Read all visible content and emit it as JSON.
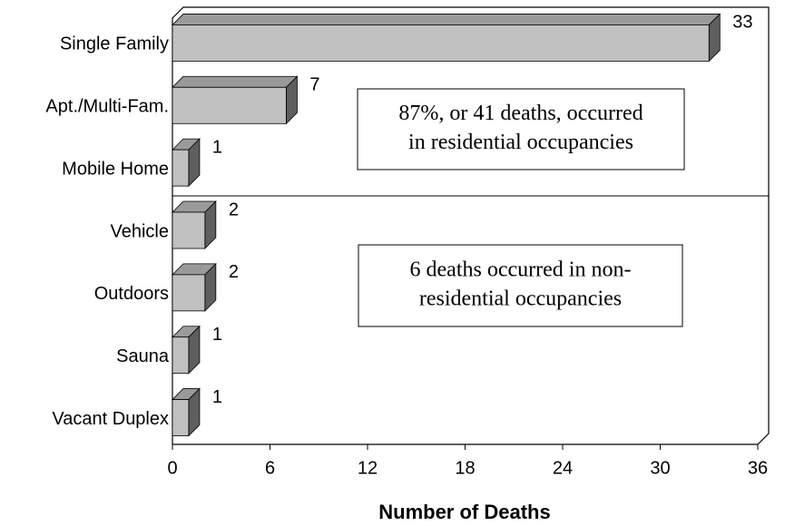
{
  "chart_data": {
    "type": "bar3d_horizontal",
    "categories": [
      "Single Family",
      "Apt./Multi-Fam.",
      "Mobile Home",
      "Vehicle",
      "Outdoors",
      "Sauna",
      "Vacant Duplex"
    ],
    "values": [
      33,
      7,
      1,
      2,
      2,
      1,
      1
    ],
    "colors": {
      "front": "#c0c0c0",
      "top": "#9a9a9a",
      "side": "#5e5e5e"
    },
    "xlim": [
      0,
      36
    ],
    "xticks": [
      0,
      6,
      12,
      18,
      24,
      30,
      36
    ],
    "x_label": "Number of Deaths",
    "annotations": [
      {
        "lines": [
          "87%, or 41 deaths, occurred",
          "in residential occupancies"
        ]
      },
      {
        "lines": [
          "6 deaths occurred in non-",
          "residential occupancies"
        ]
      }
    ]
  }
}
